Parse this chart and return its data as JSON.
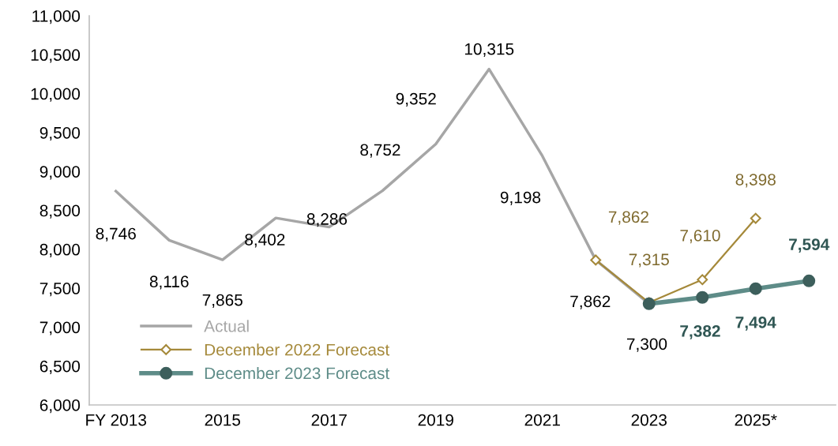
{
  "chart_data": {
    "type": "line",
    "categories": [
      "FY 2013",
      null,
      "2015",
      null,
      "2017",
      null,
      "2019",
      null,
      "2021",
      null,
      "2023",
      null,
      "2025*",
      null
    ],
    "series": [
      {
        "name": "Actual",
        "color": "#a6a6a6",
        "marker": "none",
        "values": [
          8746,
          8116,
          7865,
          8402,
          8286,
          8752,
          9352,
          10315,
          9198,
          7862,
          7300,
          null,
          null,
          null
        ],
        "value_labels": [
          "8,746",
          "8,116",
          "7,865",
          "8,402",
          "8,286",
          "8,752",
          "9,352",
          "10,315",
          "9,198",
          "7,862",
          "7,300",
          null,
          null,
          null
        ]
      },
      {
        "name": "December 2022 Forecast",
        "color": "#a5893a",
        "marker": "diamond",
        "values": [
          null,
          null,
          null,
          null,
          null,
          null,
          null,
          null,
          null,
          7862,
          7315,
          7610,
          8398,
          null
        ],
        "value_labels": [
          null,
          null,
          null,
          null,
          null,
          null,
          null,
          null,
          null,
          "7,862",
          "7,315",
          "7,610",
          "8,398",
          null
        ]
      },
      {
        "name": "December 2023 Forecast",
        "color": "#5e8c88",
        "marker": "circle",
        "values": [
          null,
          null,
          null,
          null,
          null,
          null,
          null,
          null,
          null,
          null,
          7300,
          7382,
          7494,
          7594
        ],
        "value_labels": [
          null,
          null,
          null,
          null,
          null,
          null,
          null,
          null,
          null,
          null,
          null,
          "7,382",
          "7,494",
          "7,594"
        ]
      }
    ],
    "ylim": [
      6000,
      11000
    ],
    "yticks": [
      {
        "value": 6000,
        "label": "6,000"
      },
      {
        "value": 6500,
        "label": "6,500"
      },
      {
        "value": 7000,
        "label": "7,000"
      },
      {
        "value": 7500,
        "label": "7,500"
      },
      {
        "value": 8000,
        "label": "8,000"
      },
      {
        "value": 8500,
        "label": "8,500"
      },
      {
        "value": 9000,
        "label": "9,000"
      },
      {
        "value": 9500,
        "label": "9,500"
      },
      {
        "value": 10000,
        "label": "10,000"
      },
      {
        "value": 10500,
        "label": "10,500"
      },
      {
        "value": 11000,
        "label": "11,000"
      }
    ],
    "grid": false,
    "legend": "bottom left"
  }
}
